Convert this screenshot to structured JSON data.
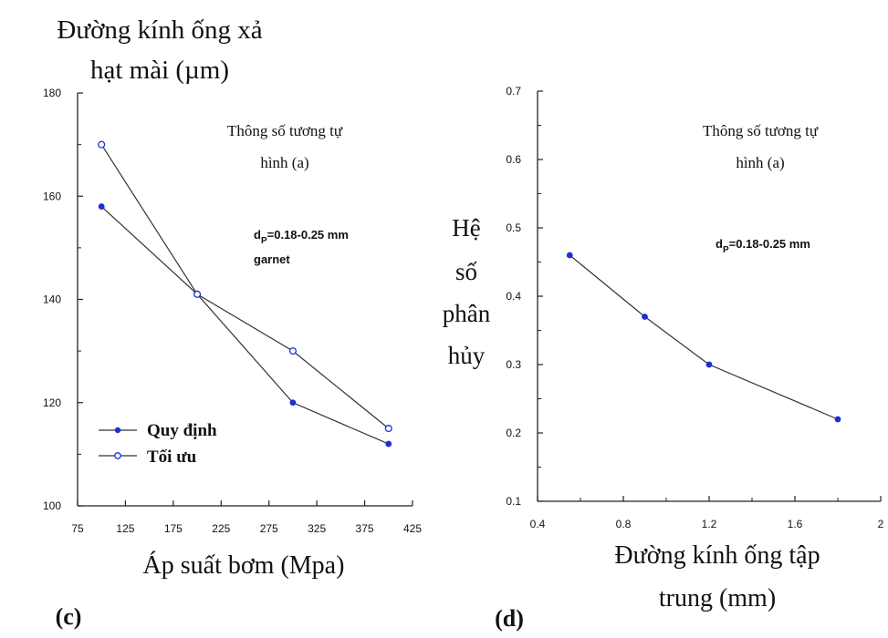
{
  "chart_data": [
    {
      "type": "line",
      "panel_label": "(c)",
      "ylabel": "Đường kính ống xả hạt mài (µm)",
      "ylabel_lines": [
        "Đường kính ống xả",
        "hạt mài (µm)"
      ],
      "xlabel": "Áp suất bơm (Mpa)",
      "xlim": [
        75,
        425
      ],
      "ylim": [
        100,
        180
      ],
      "x_ticks": [
        "75",
        "125",
        "175",
        "225",
        "275",
        "325",
        "375",
        "425"
      ],
      "y_ticks": [
        "100",
        "120",
        "140",
        "160",
        "180"
      ],
      "annotations": {
        "note_lines": [
          "Thông số tương tự",
          "hình (a)"
        ],
        "dp_label": "d",
        "dp_sub": "P",
        "dp_value": "=0.18-0.25 mm",
        "material": "garnet"
      },
      "legend_position": "bottom-left",
      "series": [
        {
          "name": "Quy định",
          "marker": "filled",
          "x": [
            100,
            200,
            300,
            400
          ],
          "y": [
            158,
            141,
            120,
            112
          ]
        },
        {
          "name": "Tối ưu",
          "marker": "open",
          "x": [
            100,
            200,
            300,
            400
          ],
          "y": [
            170,
            141,
            130,
            115
          ]
        }
      ]
    },
    {
      "type": "line",
      "panel_label": "(d)",
      "ylabel": "Hệ số phân hủy",
      "ylabel_lines": [
        "Hệ",
        "số",
        "phân",
        "hủy"
      ],
      "xlabel": "Đường kính ống tập trung (mm)",
      "xlabel_lines": [
        "Đường kính ống tập",
        "trung (mm)"
      ],
      "xlim": [
        0.4,
        2
      ],
      "ylim": [
        0.1,
        0.7
      ],
      "x_ticks": [
        "0.4",
        "0.8",
        "1.2",
        "1.6",
        "2"
      ],
      "y_ticks": [
        "0.1",
        "0.2",
        "0.3",
        "0.4",
        "0.5",
        "0.6",
        "0.7"
      ],
      "annotations": {
        "note_lines": [
          "Thông số tương tự",
          "hình (a)"
        ],
        "dp_label": "d",
        "dp_sub": "P",
        "dp_value": "=0.18-0.25 mm"
      },
      "series": [
        {
          "marker": "filled",
          "x": [
            0.55,
            0.9,
            1.2,
            1.8
          ],
          "y": [
            0.46,
            0.37,
            0.3,
            0.22
          ]
        }
      ]
    }
  ],
  "colors": {
    "line": "#333333",
    "marker": "#1a2fd6",
    "text": "#111111",
    "axis": "#222222"
  }
}
